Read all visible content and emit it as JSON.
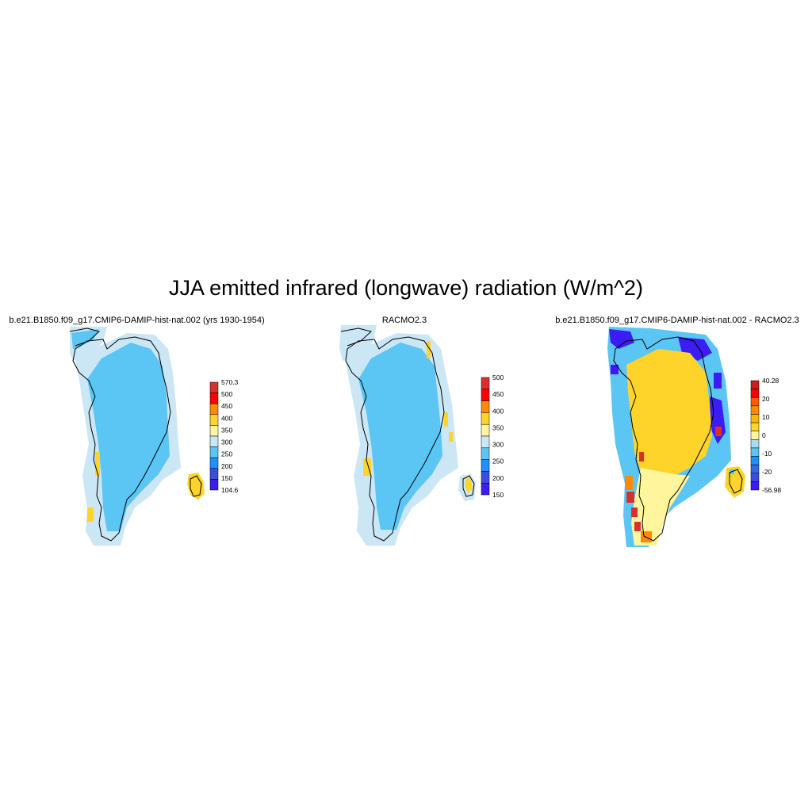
{
  "title": "JJA emitted infrared (longwave) radiation (W/m^2)",
  "panels": [
    {
      "title": "b.e21.B1850.f09_g17.CMIP6-DAMIP-hist-nat.002 (yrs 1930-1954)",
      "colorbar": {
        "labels": [
          "570.3",
          "500",
          "450",
          "400",
          "350",
          "300",
          "250",
          "200",
          "150",
          "104.6"
        ],
        "colors": [
          "#d9302f",
          "#ff0000",
          "#ff8c00",
          "#ffd42a",
          "#fff59d",
          "#cbe7f5",
          "#5bc5f4",
          "#1e90ff",
          "#3d4ce0",
          "#3b1cf5"
        ]
      }
    },
    {
      "title": "RACMO2.3",
      "colorbar": {
        "labels": [
          "500",
          "450",
          "400",
          "350",
          "300",
          "250",
          "200",
          "150"
        ],
        "colors": [
          "#d9302f",
          "#ff0000",
          "#ff8c00",
          "#ffd42a",
          "#fff59d",
          "#cbe7f5",
          "#5bc5f4",
          "#1e90ff",
          "#3d4ce0",
          "#3b1cf5"
        ]
      }
    },
    {
      "title": "b.e21.B1850.f09_g17.CMIP6-DAMIP-hist-nat.002 - RACMO2.3",
      "colorbar": {
        "labels": [
          "40.28",
          "20",
          "10",
          "0",
          "-10",
          "-20",
          "-56.98"
        ],
        "colors": [
          "#c81e1e",
          "#ff0000",
          "#ff5a00",
          "#ff8c00",
          "#ffb400",
          "#ffd42a",
          "#fff59d",
          "#a8dcf0",
          "#5bc5f4",
          "#1e90ff",
          "#2f6be8",
          "#3d4ce0",
          "#3b1cf5"
        ]
      }
    }
  ],
  "colors": {
    "ice_sheet_model": "#5bc5f4",
    "ice_edge": "#cbe7f5",
    "warm_spots": "#ffd42a",
    "diff_interior": "#ffd42a",
    "diff_south": "#fff59d",
    "diff_edge_blue": "#5bc5f4",
    "diff_edge_purple": "#3b1cf5",
    "diff_edge_red": "#d9302f"
  }
}
